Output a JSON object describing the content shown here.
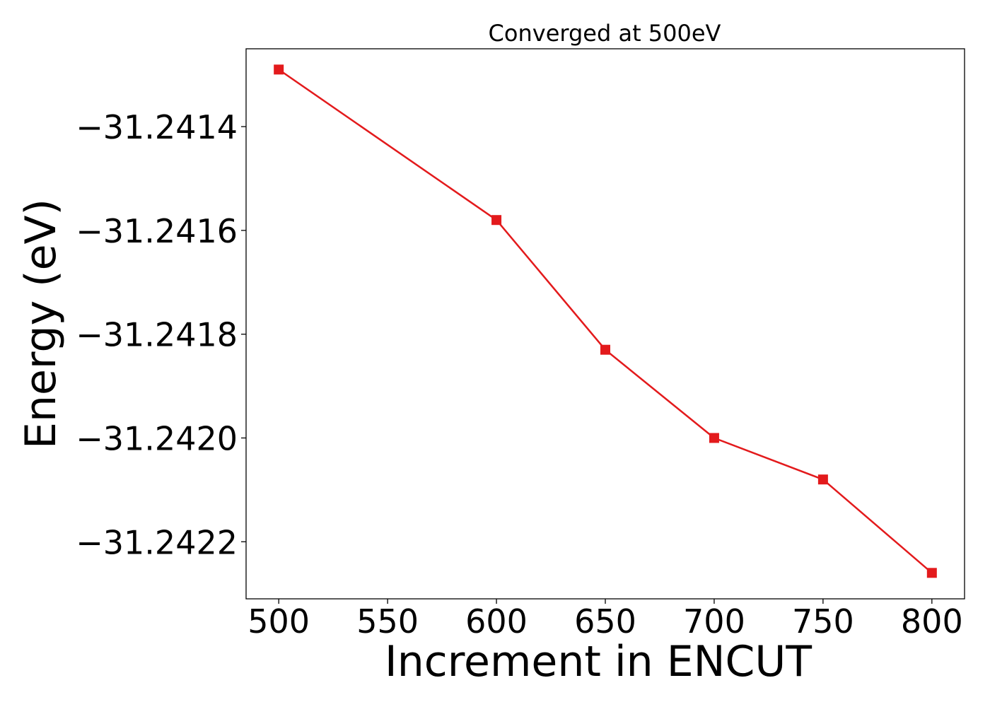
{
  "chart_data": {
    "type": "line",
    "title": "Converged at 500eV",
    "xlabel": "Increment in ENCUT",
    "ylabel": "Energy (eV)",
    "xlim": [
      485,
      815
    ],
    "ylim": [
      -31.24231,
      -31.24125
    ],
    "xticks": [
      500,
      550,
      600,
      650,
      700,
      750,
      800
    ],
    "yticks": [
      -31.2414,
      -31.2416,
      -31.2418,
      -31.242,
      -31.2422
    ],
    "ytick_labels": [
      "−31.2414",
      "−31.2416",
      "−31.2418",
      "−31.2420",
      "−31.2422"
    ],
    "grid": false,
    "legend": "none",
    "series": [
      {
        "x": [
          500,
          600,
          650,
          700,
          750,
          800
        ],
        "y": [
          -31.24129,
          -31.24158,
          -31.24183,
          -31.242,
          -31.24208,
          -31.24226
        ],
        "color": "#e31a1c",
        "marker": "square"
      }
    ]
  }
}
